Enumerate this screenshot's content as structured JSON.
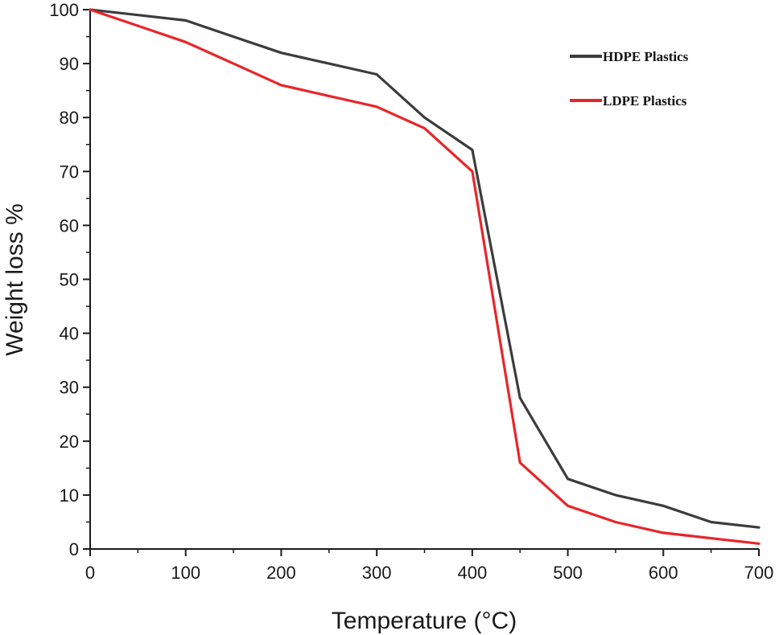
{
  "chart_data": {
    "type": "line",
    "title": "",
    "xlabel": "Temperature (°C)",
    "ylabel": "Weight loss %",
    "xlim": [
      0,
      700
    ],
    "ylim": [
      0,
      100
    ],
    "xticks": [
      0,
      100,
      200,
      300,
      400,
      500,
      600,
      700
    ],
    "yticks": [
      0,
      10,
      20,
      30,
      40,
      50,
      60,
      70,
      80,
      90,
      100
    ],
    "x_tick_labels": [
      "0",
      "100",
      "200",
      "300",
      "400",
      "500",
      "600",
      "700"
    ],
    "y_tick_labels": [
      "0",
      "10",
      "20",
      "30",
      "40",
      "50",
      "60",
      "70",
      "80",
      "90",
      "100"
    ],
    "grid": false,
    "legend_position": "top-right",
    "series": [
      {
        "name": "HDPE Plastics",
        "color": "#3c3c3c",
        "x": [
          0,
          50,
          100,
          150,
          200,
          250,
          300,
          350,
          400,
          450,
          500,
          550,
          600,
          650,
          700
        ],
        "y": [
          100,
          99,
          98,
          95,
          92,
          90,
          88,
          80,
          74,
          28,
          13,
          10,
          8,
          5,
          4
        ]
      },
      {
        "name": "LDPE Plastics",
        "color": "#e8262a",
        "x": [
          0,
          50,
          100,
          150,
          200,
          250,
          300,
          350,
          400,
          450,
          500,
          550,
          600,
          650,
          700
        ],
        "y": [
          100,
          97,
          94,
          90,
          86,
          84,
          82,
          78,
          70,
          16,
          8,
          5,
          3,
          2,
          1
        ]
      }
    ]
  }
}
